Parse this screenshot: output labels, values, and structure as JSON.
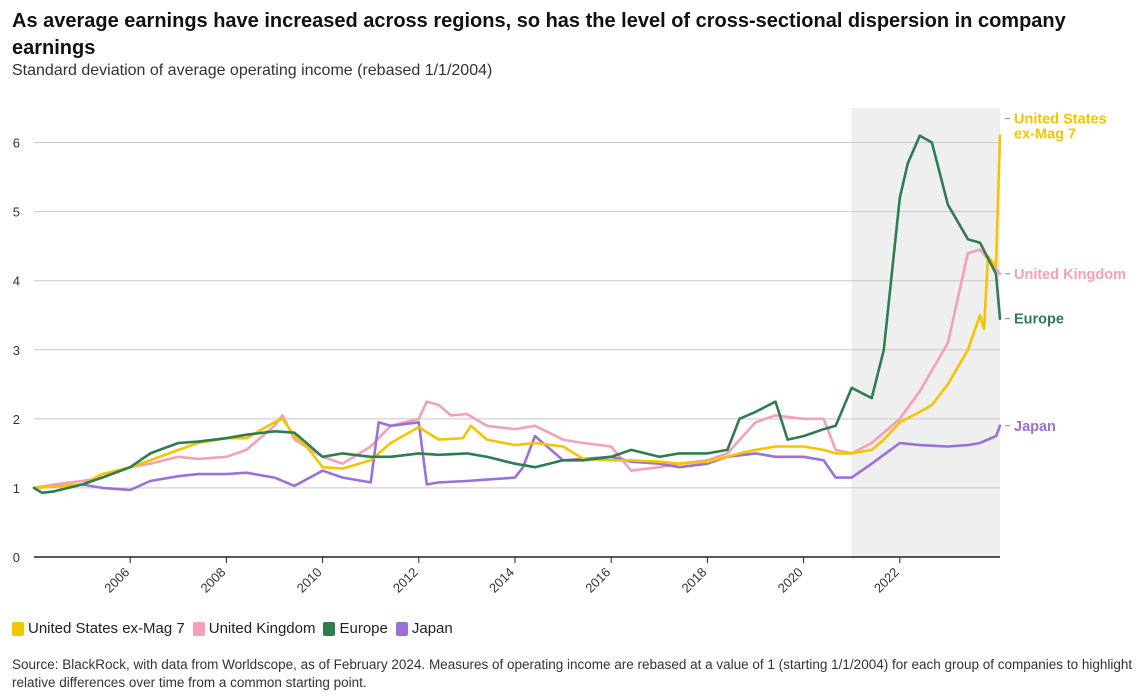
{
  "title": "As average earnings have increased across regions, so has the level of cross-sectional dispersion in company earnings",
  "subtitle": "Standard deviation of average operating income (rebased 1/1/2004)",
  "source": "Source: BlackRock, with data from Worldscope, as of February 2024. Measures of operating income are rebased at a value of 1 (starting 1/1/2004) for each group of companies to highlight relative differences over time from a common starting point.",
  "chart_data": {
    "type": "line",
    "x_range": [
      "2004-01",
      "2024-02"
    ],
    "x_tick_labels": [
      "2006",
      "2008",
      "2010",
      "2012",
      "2014",
      "2016",
      "2018",
      "2020",
      "2022"
    ],
    "y_range": [
      0,
      6.5
    ],
    "y_tick_labels": [
      "0",
      "1",
      "2",
      "3",
      "4",
      "5",
      "6"
    ],
    "grid": true,
    "legend_placement": "bottom",
    "shaded_region": {
      "from": "2021-01",
      "to": "2024-02",
      "color": "#efefef"
    },
    "series": [
      {
        "name": "United States ex-Mag 7",
        "end_label": [
          "United States",
          "ex-Mag 7"
        ],
        "color": "#f5c400",
        "points": [
          [
            "2004-01",
            1.0
          ],
          [
            "2004-06",
            1.02
          ],
          [
            "2005-01",
            1.05
          ],
          [
            "2005-06",
            1.2
          ],
          [
            "2006-01",
            1.3
          ],
          [
            "2006-06",
            1.4
          ],
          [
            "2007-01",
            1.55
          ],
          [
            "2007-06",
            1.65
          ],
          [
            "2008-01",
            1.72
          ],
          [
            "2008-06",
            1.72
          ],
          [
            "2009-01",
            1.95
          ],
          [
            "2009-03",
            2.0
          ],
          [
            "2009-06",
            1.75
          ],
          [
            "2009-09",
            1.6
          ],
          [
            "2010-01",
            1.3
          ],
          [
            "2010-06",
            1.28
          ],
          [
            "2011-01",
            1.4
          ],
          [
            "2011-06",
            1.65
          ],
          [
            "2012-01",
            1.88
          ],
          [
            "2012-06",
            1.7
          ],
          [
            "2012-12",
            1.72
          ],
          [
            "2013-02",
            1.9
          ],
          [
            "2013-06",
            1.7
          ],
          [
            "2014-01",
            1.62
          ],
          [
            "2014-06",
            1.65
          ],
          [
            "2015-01",
            1.6
          ],
          [
            "2015-06",
            1.42
          ],
          [
            "2016-01",
            1.4
          ],
          [
            "2016-06",
            1.4
          ],
          [
            "2017-01",
            1.38
          ],
          [
            "2017-06",
            1.35
          ],
          [
            "2018-01",
            1.38
          ],
          [
            "2018-06",
            1.45
          ],
          [
            "2018-09",
            1.5
          ],
          [
            "2019-01",
            1.55
          ],
          [
            "2019-06",
            1.6
          ],
          [
            "2020-01",
            1.6
          ],
          [
            "2020-06",
            1.55
          ],
          [
            "2020-09",
            1.5
          ],
          [
            "2021-01",
            1.5
          ],
          [
            "2021-06",
            1.55
          ],
          [
            "2021-09",
            1.7
          ],
          [
            "2022-01",
            1.95
          ],
          [
            "2022-06",
            2.1
          ],
          [
            "2022-09",
            2.2
          ],
          [
            "2023-01",
            2.5
          ],
          [
            "2023-03",
            2.7
          ],
          [
            "2023-06",
            3.0
          ],
          [
            "2023-09",
            3.5
          ],
          [
            "2023-10",
            3.3
          ],
          [
            "2023-11",
            4.35
          ],
          [
            "2024-01",
            4.2
          ],
          [
            "2024-02",
            6.1
          ]
        ]
      },
      {
        "name": "United Kingdom",
        "end_label": [
          "United Kingdom"
        ],
        "color": "#f4a0b8",
        "points": [
          [
            "2004-01",
            1.0
          ],
          [
            "2004-06",
            1.05
          ],
          [
            "2005-01",
            1.1
          ],
          [
            "2005-06",
            1.15
          ],
          [
            "2006-01",
            1.3
          ],
          [
            "2006-06",
            1.35
          ],
          [
            "2007-01",
            1.45
          ],
          [
            "2007-06",
            1.42
          ],
          [
            "2008-01",
            1.45
          ],
          [
            "2008-06",
            1.55
          ],
          [
            "2009-01",
            1.9
          ],
          [
            "2009-03",
            2.05
          ],
          [
            "2009-06",
            1.7
          ],
          [
            "2010-01",
            1.45
          ],
          [
            "2010-06",
            1.35
          ],
          [
            "2011-01",
            1.6
          ],
          [
            "2011-06",
            1.9
          ],
          [
            "2012-01",
            2.0
          ],
          [
            "2012-03",
            2.25
          ],
          [
            "2012-06",
            2.2
          ],
          [
            "2012-09",
            2.05
          ],
          [
            "2013-01",
            2.07
          ],
          [
            "2013-06",
            1.9
          ],
          [
            "2014-01",
            1.85
          ],
          [
            "2014-06",
            1.9
          ],
          [
            "2015-01",
            1.7
          ],
          [
            "2015-06",
            1.65
          ],
          [
            "2016-01",
            1.6
          ],
          [
            "2016-06",
            1.25
          ],
          [
            "2017-01",
            1.3
          ],
          [
            "2017-06",
            1.35
          ],
          [
            "2018-01",
            1.4
          ],
          [
            "2018-06",
            1.5
          ],
          [
            "2019-01",
            1.95
          ],
          [
            "2019-06",
            2.05
          ],
          [
            "2020-01",
            2.0
          ],
          [
            "2020-06",
            2.0
          ],
          [
            "2020-09",
            1.55
          ],
          [
            "2021-01",
            1.5
          ],
          [
            "2021-06",
            1.65
          ],
          [
            "2022-01",
            2.0
          ],
          [
            "2022-06",
            2.4
          ],
          [
            "2022-09",
            2.7
          ],
          [
            "2023-01",
            3.1
          ],
          [
            "2023-06",
            4.4
          ],
          [
            "2023-09",
            4.45
          ],
          [
            "2024-02",
            4.1
          ]
        ]
      },
      {
        "name": "Europe",
        "end_label": [
          "Europe"
        ],
        "color": "#2e7d4f",
        "points": [
          [
            "2004-01",
            1.0
          ],
          [
            "2004-03",
            0.93
          ],
          [
            "2004-06",
            0.95
          ],
          [
            "2005-01",
            1.05
          ],
          [
            "2005-06",
            1.15
          ],
          [
            "2006-01",
            1.3
          ],
          [
            "2006-06",
            1.5
          ],
          [
            "2007-01",
            1.65
          ],
          [
            "2007-06",
            1.67
          ],
          [
            "2008-01",
            1.72
          ],
          [
            "2008-06",
            1.77
          ],
          [
            "2009-01",
            1.82
          ],
          [
            "2009-06",
            1.8
          ],
          [
            "2010-01",
            1.45
          ],
          [
            "2010-06",
            1.5
          ],
          [
            "2011-01",
            1.45
          ],
          [
            "2011-06",
            1.45
          ],
          [
            "2012-01",
            1.5
          ],
          [
            "2012-06",
            1.48
          ],
          [
            "2013-01",
            1.5
          ],
          [
            "2013-06",
            1.45
          ],
          [
            "2014-01",
            1.35
          ],
          [
            "2014-06",
            1.3
          ],
          [
            "2015-01",
            1.4
          ],
          [
            "2015-06",
            1.4
          ],
          [
            "2016-01",
            1.45
          ],
          [
            "2016-06",
            1.55
          ],
          [
            "2017-01",
            1.45
          ],
          [
            "2017-06",
            1.5
          ],
          [
            "2018-01",
            1.5
          ],
          [
            "2018-06",
            1.55
          ],
          [
            "2018-09",
            2.0
          ],
          [
            "2019-01",
            2.1
          ],
          [
            "2019-06",
            2.25
          ],
          [
            "2019-09",
            1.7
          ],
          [
            "2020-01",
            1.75
          ],
          [
            "2020-06",
            1.85
          ],
          [
            "2020-09",
            1.9
          ],
          [
            "2021-01",
            2.45
          ],
          [
            "2021-06",
            2.3
          ],
          [
            "2021-09",
            3.0
          ],
          [
            "2022-01",
            5.2
          ],
          [
            "2022-03",
            5.7
          ],
          [
            "2022-06",
            6.1
          ],
          [
            "2022-09",
            6.0
          ],
          [
            "2023-01",
            5.1
          ],
          [
            "2023-06",
            4.6
          ],
          [
            "2023-09",
            4.55
          ],
          [
            "2024-01",
            4.1
          ],
          [
            "2024-02",
            3.45
          ]
        ]
      },
      {
        "name": "Japan",
        "end_label": [
          "Japan"
        ],
        "color": "#9a72d6",
        "points": [
          [
            "2004-01",
            1.0
          ],
          [
            "2004-06",
            1.02
          ],
          [
            "2005-01",
            1.05
          ],
          [
            "2005-06",
            1.0
          ],
          [
            "2006-01",
            0.97
          ],
          [
            "2006-06",
            1.1
          ],
          [
            "2007-01",
            1.17
          ],
          [
            "2007-06",
            1.2
          ],
          [
            "2008-01",
            1.2
          ],
          [
            "2008-06",
            1.22
          ],
          [
            "2009-01",
            1.15
          ],
          [
            "2009-06",
            1.03
          ],
          [
            "2010-01",
            1.25
          ],
          [
            "2010-06",
            1.15
          ],
          [
            "2011-01",
            1.08
          ],
          [
            "2011-03",
            1.95
          ],
          [
            "2011-06",
            1.9
          ],
          [
            "2012-01",
            1.95
          ],
          [
            "2012-03",
            1.05
          ],
          [
            "2012-06",
            1.08
          ],
          [
            "2013-01",
            1.1
          ],
          [
            "2013-06",
            1.12
          ],
          [
            "2014-01",
            1.15
          ],
          [
            "2014-03",
            1.3
          ],
          [
            "2014-06",
            1.75
          ],
          [
            "2015-01",
            1.4
          ],
          [
            "2015-06",
            1.42
          ],
          [
            "2016-01",
            1.45
          ],
          [
            "2016-06",
            1.38
          ],
          [
            "2017-01",
            1.35
          ],
          [
            "2017-06",
            1.3
          ],
          [
            "2018-01",
            1.35
          ],
          [
            "2018-06",
            1.45
          ],
          [
            "2019-01",
            1.5
          ],
          [
            "2019-06",
            1.45
          ],
          [
            "2020-01",
            1.45
          ],
          [
            "2020-06",
            1.4
          ],
          [
            "2020-09",
            1.15
          ],
          [
            "2021-01",
            1.15
          ],
          [
            "2021-06",
            1.35
          ],
          [
            "2022-01",
            1.65
          ],
          [
            "2022-06",
            1.62
          ],
          [
            "2023-01",
            1.6
          ],
          [
            "2023-06",
            1.62
          ],
          [
            "2023-09",
            1.65
          ],
          [
            "2024-01",
            1.75
          ],
          [
            "2024-02",
            1.9
          ]
        ]
      }
    ]
  }
}
